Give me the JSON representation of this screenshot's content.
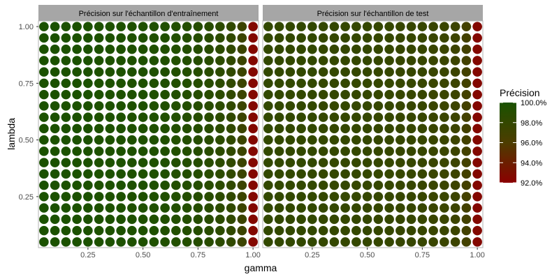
{
  "chart_data": {
    "type": "scatter",
    "x_name": "gamma",
    "y_name": "lambda",
    "xlabel": "gamma",
    "ylabel": "lambda",
    "x_values": [
      0.05,
      0.1,
      0.15,
      0.2,
      0.25,
      0.3,
      0.35,
      0.4,
      0.45,
      0.5,
      0.55,
      0.6,
      0.65,
      0.7,
      0.75,
      0.8,
      0.85,
      0.9,
      0.95,
      1.0
    ],
    "y_values": [
      0.05,
      0.1,
      0.15,
      0.2,
      0.25,
      0.3,
      0.35,
      0.4,
      0.45,
      0.5,
      0.55,
      0.6,
      0.65,
      0.7,
      0.75,
      0.8,
      0.85,
      0.9,
      0.95,
      1.0
    ],
    "xlim": [
      0.025,
      1.025
    ],
    "ylim": [
      0.025,
      1.025
    ],
    "x_ticks": [
      0.25,
      0.5,
      0.75,
      1.0
    ],
    "x_tick_labels": [
      "0.25",
      "0.50",
      "0.75",
      "1.00"
    ],
    "y_ticks": [
      0.25,
      0.5,
      0.75,
      1.0
    ],
    "y_tick_labels": [
      "0.25",
      "0.50",
      "0.75",
      "1.00"
    ],
    "grid": true,
    "panels": [
      {
        "title": "Précision sur l'échantillon d'entraînement",
        "accuracy_by_gamma": [
          0.999,
          0.999,
          0.999,
          0.999,
          0.999,
          0.998,
          0.998,
          0.998,
          0.997,
          0.997,
          0.996,
          0.995,
          0.994,
          0.993,
          0.991,
          0.989,
          0.986,
          0.982,
          0.974,
          0.925
        ]
      },
      {
        "title": "Précision sur l'échantillon de test",
        "accuracy_by_gamma": [
          0.981,
          0.981,
          0.981,
          0.981,
          0.981,
          0.98,
          0.98,
          0.98,
          0.98,
          0.98,
          0.979,
          0.979,
          0.978,
          0.978,
          0.977,
          0.976,
          0.975,
          0.973,
          0.968,
          0.925
        ]
      }
    ],
    "legend": {
      "title": "Précision",
      "placement": "right",
      "range": [
        0.92,
        1.0
      ],
      "ticks": [
        1.0,
        0.98,
        0.96,
        0.94,
        0.92
      ],
      "tick_labels": [
        "100.0%",
        "98.0%",
        "96.0%",
        "94.0%",
        "92.0%"
      ],
      "color_high": "#1a5200",
      "color_mid": "#4d3d00",
      "color_low": "#8b0000"
    },
    "colors": {
      "strip": "#a6a6a6",
      "strip_text": "#ffffff",
      "panel_border": "#b3b3b3",
      "grid_major": "#e6e6e6",
      "grid_minor": "#f2f2f2",
      "axis_text": "#4d4d4d",
      "title_text": "#000000"
    }
  }
}
